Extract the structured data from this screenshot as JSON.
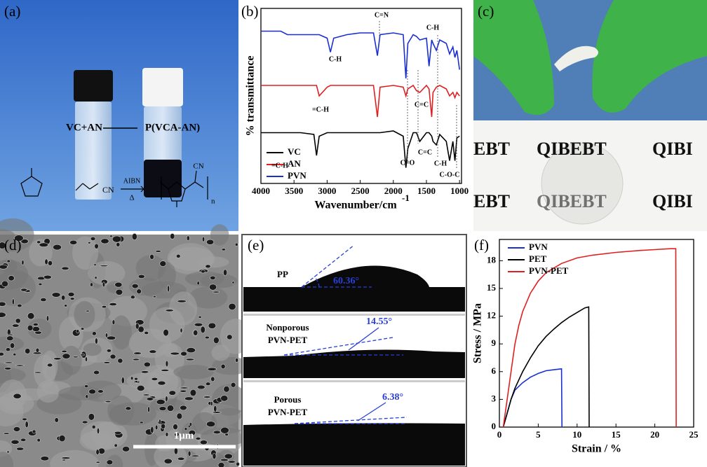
{
  "panels": {
    "a": {
      "label": "(a)",
      "vial_left": "VC+AN",
      "vial_right": "P(VCA-AN)",
      "catalyst": "AIBN",
      "heat": "Δ",
      "group": "CN",
      "group2": "CN",
      "repeat": "n"
    },
    "c": {
      "label": "(c)",
      "print": [
        "EBT",
        "QIBEBT",
        "QIBI",
        "EBT",
        "QIBEBT",
        "QIBI"
      ]
    },
    "d": {
      "label": "(d)",
      "scale": "1μm"
    },
    "e": {
      "label": "(e)",
      "samples": [
        {
          "name": [
            "PP"
          ],
          "angle": "60.36°"
        },
        {
          "name": [
            "Nonporous",
            "PVN-PET"
          ],
          "angle": "14.55°"
        },
        {
          "name": [
            "Porous",
            "PVN-PET"
          ],
          "angle": "6.38°"
        }
      ]
    }
  },
  "chart_data": [
    {
      "type": "line",
      "panel_label": "(b)",
      "x_label": "Wavenumber/cm",
      "x_label_sup": "-1",
      "y_label": "% transmittance",
      "x": [
        4000,
        3700,
        3600,
        3400,
        3200,
        3160,
        3120,
        3000,
        2950,
        2900,
        2700,
        2500,
        2300,
        2240,
        2200,
        2000,
        1850,
        1810,
        1780,
        1700,
        1650,
        1600,
        1500,
        1460,
        1420,
        1400,
        1350,
        1300,
        1200,
        1150,
        1100,
        1070,
        1040,
        1000
      ],
      "xlim": [
        4000,
        970
      ],
      "xticks": [
        4000,
        3500,
        3000,
        2500,
        2000,
        1500,
        1000
      ],
      "ylim": [
        0,
        100
      ],
      "series": [
        {
          "name": "VC",
          "color": "#000000",
          "values": [
            29,
            29,
            29,
            29,
            28,
            16,
            27,
            29,
            29,
            29,
            29,
            29,
            29,
            29,
            29,
            30,
            27,
            9,
            20,
            29,
            29,
            24,
            29,
            29,
            27,
            24,
            22,
            28,
            24,
            13,
            24,
            13,
            26,
            27
          ]
        },
        {
          "name": "AN",
          "color": "#e02020",
          "values": [
            56,
            56,
            56,
            56,
            56,
            56,
            50,
            55,
            56,
            56,
            56,
            56,
            56,
            38,
            55,
            56,
            55,
            50,
            54,
            56,
            53,
            52,
            56,
            54,
            38,
            52,
            55,
            56,
            54,
            50,
            52,
            49,
            52,
            50
          ]
        },
        {
          "name": "PVN",
          "color": "#1a2fd0",
          "values": [
            87,
            87,
            85,
            85,
            85,
            85,
            85,
            83,
            75,
            83,
            85,
            86,
            86,
            73,
            85,
            86,
            85,
            60,
            80,
            85,
            84,
            82,
            83,
            67,
            82,
            80,
            76,
            82,
            80,
            74,
            78,
            72,
            76,
            65
          ]
        }
      ],
      "annotations": [
        "C=N",
        "C-H",
        "C-H",
        "=C-H",
        "C=C",
        "C=C",
        "C-H",
        "=C-H",
        "C=O",
        "C-O-C"
      ]
    },
    {
      "type": "line",
      "panel_label": "(f)",
      "x_label": "Strain / %",
      "y_label": "Stress / MPa",
      "xlim": [
        0,
        25
      ],
      "xticks": [
        0,
        5,
        10,
        15,
        20,
        25
      ],
      "ylim": [
        0,
        20.3
      ],
      "yticks": [
        0,
        3,
        6,
        9,
        12,
        15,
        18
      ],
      "legend": "upper left",
      "series": [
        {
          "name": "PVN",
          "color": "#1a2fd0",
          "x": [
            0.5,
            1,
            1.5,
            2,
            3,
            4,
            5,
            6,
            7,
            8,
            8.05
          ],
          "values": [
            0,
            1.5,
            3,
            4,
            4.8,
            5.4,
            5.8,
            6.1,
            6.2,
            6.3,
            0
          ]
        },
        {
          "name": "PET",
          "color": "#000000",
          "x": [
            0.5,
            1,
            1.5,
            2,
            3,
            4,
            5,
            6,
            7,
            8,
            9,
            10,
            11,
            11.5,
            11.55
          ],
          "values": [
            0,
            1.5,
            3,
            4.2,
            6,
            7.5,
            8.8,
            9.8,
            10.6,
            11.3,
            11.9,
            12.4,
            12.9,
            13,
            0
          ]
        },
        {
          "name": "PVN-PET",
          "color": "#e02020",
          "x": [
            0.5,
            1,
            1.5,
            2,
            2.5,
            3,
            4,
            5,
            6,
            8,
            10,
            12,
            15,
            18,
            20,
            22,
            22.7,
            22.75
          ],
          "values": [
            0,
            3,
            6,
            9,
            11,
            12.5,
            14.5,
            15.8,
            16.7,
            17.7,
            18.3,
            18.6,
            18.9,
            19.1,
            19.2,
            19.3,
            19.3,
            0
          ]
        }
      ]
    }
  ]
}
